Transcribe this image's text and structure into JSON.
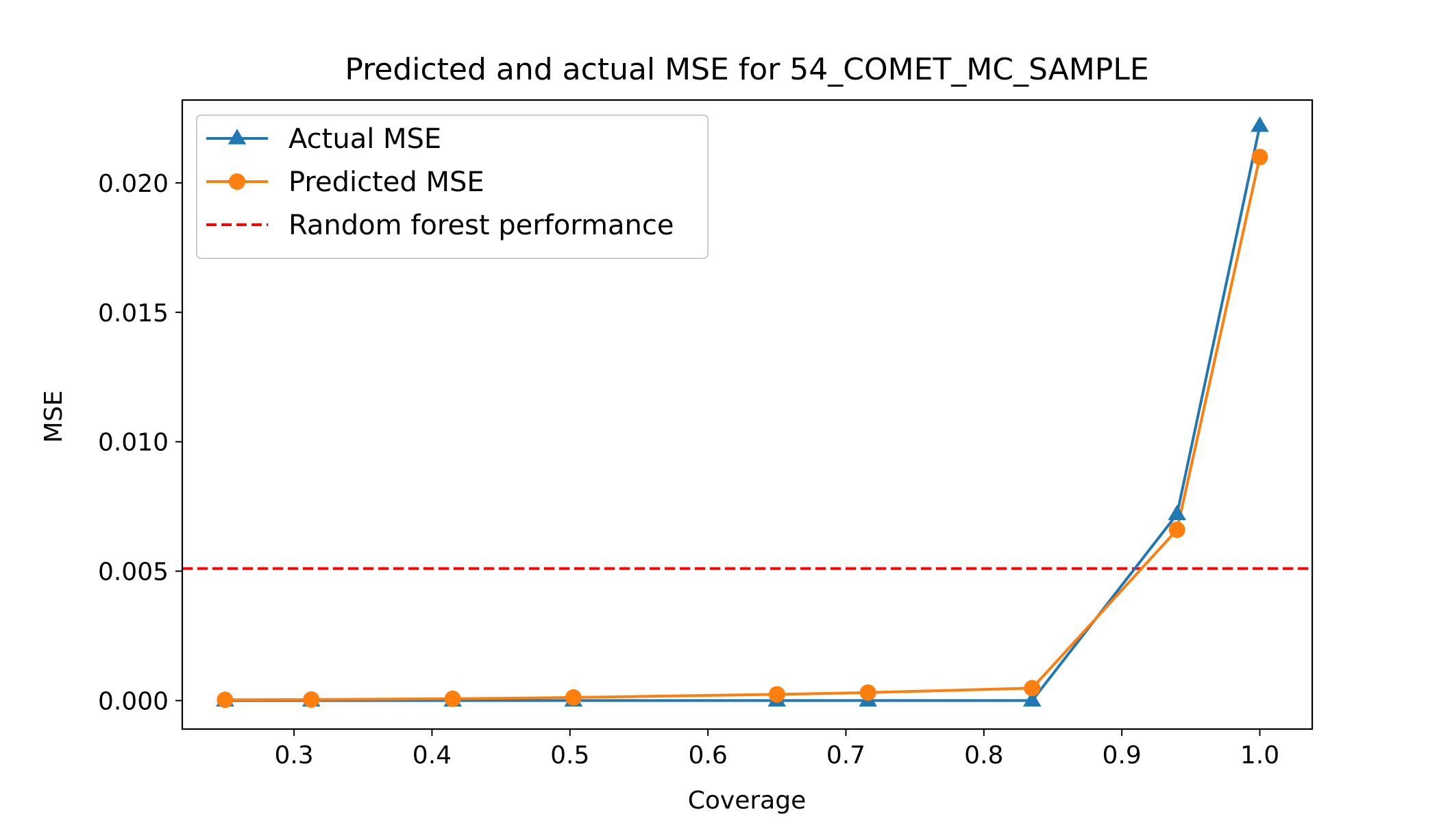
{
  "chart_data": {
    "type": "line",
    "title": "Predicted and actual MSE for 54_COMET_MC_SAMPLE",
    "xlabel": "Coverage",
    "ylabel": "MSE",
    "xlim": [
      0.219,
      1.038
    ],
    "ylim": [
      -0.0011,
      0.0232
    ],
    "xticks": [
      0.3,
      0.4,
      0.5,
      0.6,
      0.7,
      0.8,
      0.9,
      1.0
    ],
    "xtick_labels": [
      "0.3",
      "0.4",
      "0.5",
      "0.6",
      "0.7",
      "0.8",
      "0.9",
      "1.0"
    ],
    "yticks": [
      0.0,
      0.005,
      0.01,
      0.015,
      0.02
    ],
    "ytick_labels": [
      "0.000",
      "0.005",
      "0.010",
      "0.015",
      "0.020"
    ],
    "grid": false,
    "legend_position": "top-left",
    "series": [
      {
        "name": "Actual MSE",
        "color": "#1f77b4",
        "marker": "triangle",
        "x": [
          0.25,
          0.3125,
          0.415,
          0.5025,
          0.65,
          0.716,
          0.835,
          0.94,
          1.0
        ],
        "y": [
          0.0,
          0.0,
          0.0,
          0.0,
          0.0,
          0.0,
          0.0,
          0.0072,
          0.0222
        ]
      },
      {
        "name": "Predicted MSE",
        "color": "#ff7f0e",
        "marker": "circle",
        "x": [
          0.25,
          0.3125,
          0.415,
          0.5025,
          0.65,
          0.716,
          0.835,
          0.94,
          1.0
        ],
        "y": [
          3e-05,
          4e-05,
          7e-05,
          0.00012,
          0.00024,
          0.00031,
          0.00048,
          0.0066,
          0.021
        ]
      }
    ],
    "reference_lines": [
      {
        "name": "Random forest performance",
        "orientation": "horizontal",
        "y": 0.0051,
        "color": "#ff0000",
        "style": "dashed"
      }
    ]
  }
}
